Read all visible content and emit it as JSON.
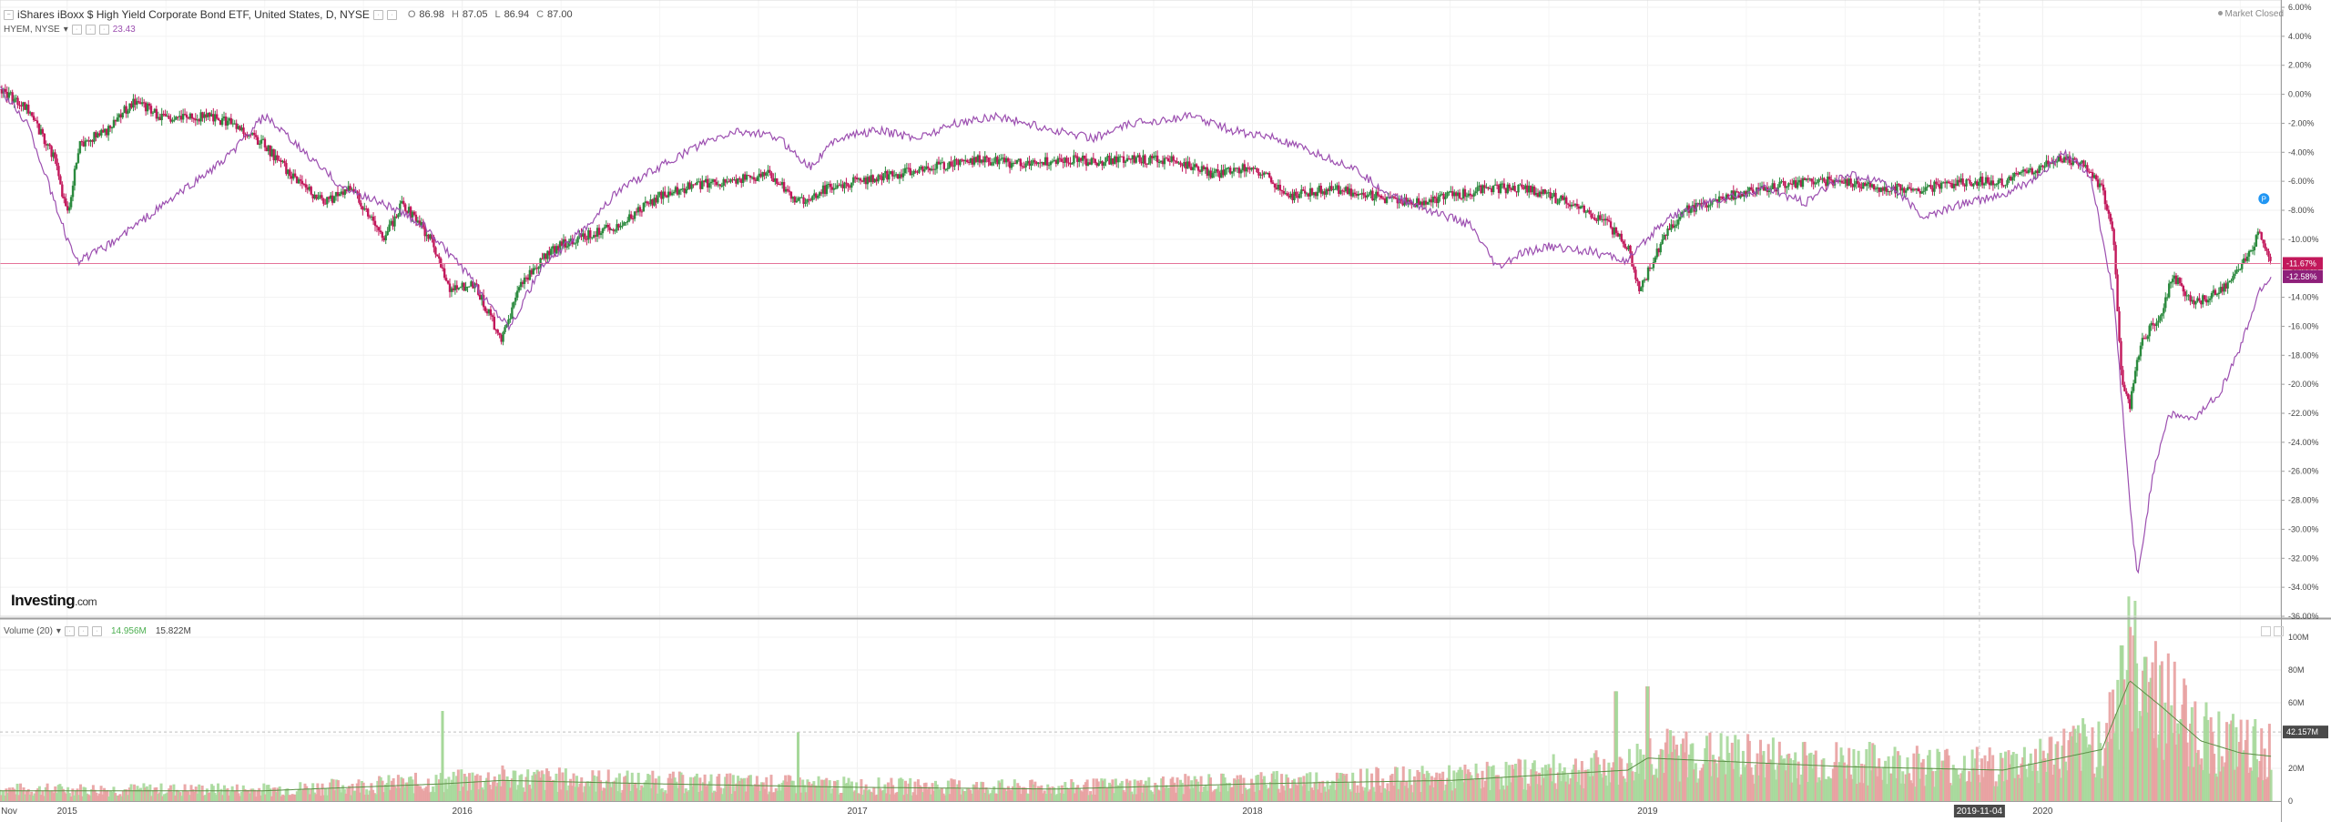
{
  "header": {
    "title": "iShares iBoxx $ High Yield Corporate Bond ETF, United States, D, NYSE",
    "ohlc": [
      {
        "key": "O",
        "value": "86.98"
      },
      {
        "key": "H",
        "value": "87.05"
      },
      {
        "key": "L",
        "value": "86.94"
      },
      {
        "key": "C",
        "value": "87.00"
      }
    ],
    "market_status": "Market Closed",
    "compare_symbol": "HYEM, NYSE",
    "compare_value": "23.43"
  },
  "volume_panel": {
    "label": "Volume (20)",
    "value1": "14.956M",
    "value2": "15.822M"
  },
  "logo": {
    "brand": "Investing",
    "domain": ".com"
  },
  "colors": {
    "up": "#2b8a3e",
    "down": "#c2185b",
    "compare": "#9c4fb0",
    "hline": "#e57399",
    "vol_up": "#a6d89a",
    "vol_down": "#e8a0a0",
    "vol_ma": "#5b8f46"
  },
  "chart_data": {
    "type": "line",
    "x_ticks": [
      "Nov",
      "2015",
      "2016",
      "2017",
      "2018",
      "2019",
      "2020"
    ],
    "x_label_highlight": "2019-11-04",
    "y_ticks": [
      "6.00%",
      "4.00%",
      "2.00%",
      "0.00%",
      "-2.00%",
      "-4.00%",
      "-6.00%",
      "-8.00%",
      "-10.00%",
      "-12.00%",
      "-14.00%",
      "-16.00%",
      "-18.00%",
      "-20.00%",
      "-22.00%",
      "-24.00%",
      "-26.00%",
      "-28.00%",
      "-30.00%",
      "-32.00%",
      "-34.00%",
      "-36.00%"
    ],
    "ylim": [
      -36,
      6
    ],
    "current_labels": [
      {
        "series": "HYG",
        "text": "-11.67%",
        "value": -11.67
      },
      {
        "series": "HYEM",
        "text": "-12.58%",
        "value": -12.58
      }
    ],
    "reference_line": -11.67,
    "series": [
      {
        "name": "iShares iBoxx $ High Yield Corporate Bond ETF",
        "points": [
          [
            2014.83,
            0.3
          ],
          [
            2014.9,
            -1.0
          ],
          [
            2014.97,
            -4.5
          ],
          [
            2015.0,
            -8.5
          ],
          [
            2015.03,
            -3.5
          ],
          [
            2015.1,
            -2.5
          ],
          [
            2015.17,
            -0.4
          ],
          [
            2015.25,
            -1.8
          ],
          [
            2015.35,
            -1.5
          ],
          [
            2015.42,
            -2.0
          ],
          [
            2015.5,
            -3.5
          ],
          [
            2015.58,
            -6.0
          ],
          [
            2015.65,
            -7.5
          ],
          [
            2015.72,
            -6.5
          ],
          [
            2015.8,
            -10.0
          ],
          [
            2015.85,
            -7.5
          ],
          [
            2015.92,
            -10.0
          ],
          [
            2015.97,
            -13.5
          ],
          [
            2016.03,
            -13.0
          ],
          [
            2016.1,
            -17.0
          ],
          [
            2016.15,
            -13.0
          ],
          [
            2016.22,
            -10.8
          ],
          [
            2016.3,
            -9.8
          ],
          [
            2016.4,
            -9.0
          ],
          [
            2016.5,
            -7.0
          ],
          [
            2016.6,
            -6.2
          ],
          [
            2016.68,
            -6.0
          ],
          [
            2016.78,
            -5.5
          ],
          [
            2016.85,
            -7.5
          ],
          [
            2016.92,
            -6.5
          ],
          [
            2017.0,
            -6.0
          ],
          [
            2017.1,
            -5.5
          ],
          [
            2017.2,
            -5.0
          ],
          [
            2017.3,
            -4.5
          ],
          [
            2017.4,
            -4.8
          ],
          [
            2017.5,
            -4.5
          ],
          [
            2017.6,
            -4.6
          ],
          [
            2017.7,
            -4.5
          ],
          [
            2017.8,
            -4.5
          ],
          [
            2017.9,
            -5.5
          ],
          [
            2018.0,
            -5.0
          ],
          [
            2018.1,
            -7.0
          ],
          [
            2018.2,
            -6.5
          ],
          [
            2018.3,
            -7.0
          ],
          [
            2018.4,
            -7.5
          ],
          [
            2018.5,
            -7.0
          ],
          [
            2018.6,
            -6.5
          ],
          [
            2018.7,
            -6.5
          ],
          [
            2018.8,
            -7.5
          ],
          [
            2018.9,
            -9.0
          ],
          [
            2018.95,
            -10.5
          ],
          [
            2018.98,
            -13.5
          ],
          [
            2019.05,
            -9.5
          ],
          [
            2019.1,
            -8.0
          ],
          [
            2019.2,
            -7.0
          ],
          [
            2019.3,
            -6.5
          ],
          [
            2019.4,
            -6.0
          ],
          [
            2019.5,
            -6.0
          ],
          [
            2019.6,
            -6.5
          ],
          [
            2019.7,
            -6.5
          ],
          [
            2019.8,
            -6.0
          ],
          [
            2019.9,
            -6.0
          ],
          [
            2020.0,
            -5.0
          ],
          [
            2020.05,
            -4.5
          ],
          [
            2020.1,
            -4.8
          ],
          [
            2020.15,
            -6.5
          ],
          [
            2020.18,
            -10.0
          ],
          [
            2020.2,
            -20.0
          ],
          [
            2020.22,
            -21.5
          ],
          [
            2020.25,
            -17.0
          ],
          [
            2020.3,
            -15.0
          ],
          [
            2020.33,
            -12.5
          ],
          [
            2020.38,
            -14.5
          ],
          [
            2020.45,
            -13.5
          ],
          [
            2020.5,
            -12.0
          ],
          [
            2020.55,
            -9.5
          ],
          [
            2020.58,
            -11.67
          ]
        ]
      },
      {
        "name": "HYEM, NYSE",
        "points": [
          [
            2014.83,
            0.3
          ],
          [
            2014.9,
            -2.0
          ],
          [
            2014.95,
            -6.0
          ],
          [
            2015.0,
            -10.0
          ],
          [
            2015.03,
            -11.5
          ],
          [
            2015.1,
            -10.5
          ],
          [
            2015.2,
            -8.5
          ],
          [
            2015.3,
            -6.5
          ],
          [
            2015.4,
            -4.5
          ],
          [
            2015.5,
            -1.5
          ],
          [
            2015.6,
            -4.0
          ],
          [
            2015.7,
            -6.5
          ],
          [
            2015.8,
            -7.5
          ],
          [
            2015.9,
            -9.0
          ],
          [
            2016.0,
            -12.0
          ],
          [
            2016.07,
            -14.5
          ],
          [
            2016.12,
            -16.0
          ],
          [
            2016.2,
            -12.0
          ],
          [
            2016.3,
            -9.5
          ],
          [
            2016.4,
            -6.5
          ],
          [
            2016.5,
            -5.0
          ],
          [
            2016.6,
            -3.5
          ],
          [
            2016.7,
            -2.5
          ],
          [
            2016.8,
            -3.0
          ],
          [
            2016.88,
            -5.0
          ],
          [
            2016.95,
            -3.0
          ],
          [
            2017.05,
            -2.5
          ],
          [
            2017.15,
            -3.0
          ],
          [
            2017.25,
            -2.0
          ],
          [
            2017.35,
            -1.5
          ],
          [
            2017.5,
            -2.5
          ],
          [
            2017.6,
            -3.0
          ],
          [
            2017.7,
            -2.0
          ],
          [
            2017.85,
            -1.5
          ],
          [
            2017.95,
            -2.5
          ],
          [
            2018.05,
            -3.0
          ],
          [
            2018.15,
            -4.0
          ],
          [
            2018.25,
            -5.0
          ],
          [
            2018.35,
            -7.0
          ],
          [
            2018.45,
            -8.0
          ],
          [
            2018.55,
            -9.0
          ],
          [
            2018.62,
            -12.0
          ],
          [
            2018.68,
            -11.0
          ],
          [
            2018.75,
            -10.5
          ],
          [
            2018.85,
            -10.8
          ],
          [
            2018.95,
            -11.5
          ],
          [
            2019.05,
            -8.5
          ],
          [
            2019.15,
            -7.5
          ],
          [
            2019.3,
            -6.5
          ],
          [
            2019.4,
            -7.5
          ],
          [
            2019.5,
            -5.5
          ],
          [
            2019.6,
            -6.0
          ],
          [
            2019.7,
            -8.5
          ],
          [
            2019.8,
            -7.5
          ],
          [
            2019.9,
            -7.0
          ],
          [
            2020.0,
            -5.5
          ],
          [
            2020.05,
            -4.0
          ],
          [
            2020.12,
            -5.5
          ],
          [
            2020.18,
            -14.0
          ],
          [
            2020.22,
            -28.0
          ],
          [
            2020.24,
            -33.5
          ],
          [
            2020.28,
            -26.0
          ],
          [
            2020.32,
            -22.0
          ],
          [
            2020.38,
            -22.5
          ],
          [
            2020.45,
            -20.5
          ],
          [
            2020.5,
            -17.5
          ],
          [
            2020.55,
            -13.5
          ],
          [
            2020.58,
            -12.58
          ]
        ]
      }
    ],
    "volume": {
      "y_ticks": [
        "100M",
        "80M",
        "60M",
        "40M",
        "20M",
        "0"
      ],
      "ylim": [
        0,
        105
      ],
      "current_label": "42.157M",
      "current_value": 42.157,
      "profile": [
        [
          2014.83,
          6
        ],
        [
          2015.5,
          6
        ],
        [
          2015.95,
          10
        ],
        [
          2016.1,
          12
        ],
        [
          2016.5,
          10
        ],
        [
          2017.0,
          8
        ],
        [
          2017.5,
          7
        ],
        [
          2018.0,
          10
        ],
        [
          2018.5,
          12
        ],
        [
          2018.95,
          18
        ],
        [
          2019.0,
          25
        ],
        [
          2019.5,
          20
        ],
        [
          2019.9,
          18
        ],
        [
          2020.15,
          30
        ],
        [
          2020.22,
          70
        ],
        [
          2020.3,
          55
        ],
        [
          2020.4,
          35
        ],
        [
          2020.5,
          28
        ],
        [
          2020.58,
          26
        ]
      ],
      "spikes": [
        [
          2015.95,
          55
        ],
        [
          2016.85,
          42
        ],
        [
          2018.92,
          67
        ],
        [
          2019.0,
          70
        ],
        [
          2020.2,
          95
        ],
        [
          2020.26,
          88
        ],
        [
          2020.35,
          50
        ]
      ]
    }
  }
}
